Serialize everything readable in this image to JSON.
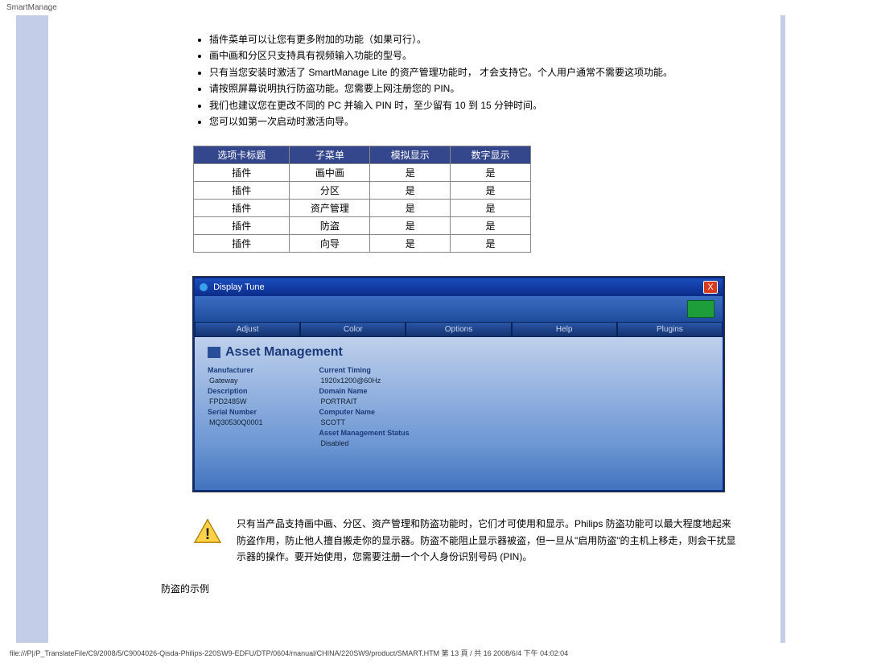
{
  "header": {
    "title": "SmartManage"
  },
  "notes": [
    "插件菜单可以让您有更多附加的功能（如果可行）。",
    "画中画和分区只支持具有视频输入功能的型号。",
    "只有当您安装时激活了 SmartManage Lite 的资产管理功能时， 才会支持它。个人用户通常不需要这项功能。",
    "请按照屏幕说明执行防盗功能。您需要上网注册您的 PIN。",
    "我们也建议您在更改不同的 PC 并输入 PIN 时，至少留有 10 到 15 分钟时间。",
    "您可以如第一次启动时激活向导。"
  ],
  "table": {
    "headers": [
      "选项卡标题",
      "子菜单",
      "模拟显示",
      "数字显示"
    ],
    "rows": [
      [
        "插件",
        "画中画",
        "是",
        "是"
      ],
      [
        "插件",
        "分区",
        "是",
        "是"
      ],
      [
        "插件",
        "资产管理",
        "是",
        "是"
      ],
      [
        "插件",
        "防盗",
        "是",
        "是"
      ],
      [
        "插件",
        "向导",
        "是",
        "是"
      ]
    ],
    "header_bg": "#35478c",
    "header_fg": "#ffffff",
    "border": "#888888"
  },
  "display_tune": {
    "window_title": "Display Tune",
    "tabs": [
      "Adjust",
      "Color",
      "Options",
      "Help",
      "Plugins"
    ],
    "panel_title": "Asset Management",
    "left": [
      {
        "label": "Manufacturer",
        "val": "Gateway"
      },
      {
        "label": "Description",
        "val": "FPD2485W"
      },
      {
        "label": "Serial Number",
        "val": "MQ30530Q0001"
      }
    ],
    "right": [
      {
        "label": "Current Timing",
        "val": "1920x1200@60Hz"
      },
      {
        "label": "Domain Name",
        "val": "PORTRAIT"
      },
      {
        "label": "Computer Name",
        "val": "SCOTT"
      },
      {
        "label": "Asset Management Status",
        "val": "Disabled"
      }
    ],
    "colors": {
      "title_bg": "#0b2d8a",
      "close_bg": "#d93a1c",
      "body_top": "#bed0ec",
      "body_bottom": "#4173be",
      "heading": "#1b3a7a"
    }
  },
  "warning": {
    "text": "只有当产品支持画中画、分区、资产管理和防盗功能时，它们才可使用和显示。Philips 防盗功能可以最大程度地起来防盗作用，防止他人擅自搬走你的显示器。防盗不能阻止显示器被盗，但一旦从\"启用防盗\"的主机上移走，则会干扰显示器的操作。要开始使用，您需要注册一个个人身份识别号码 (PIN)。"
  },
  "subheading": "防盗的示例",
  "footer": {
    "text": "file:///P|/P_TranslateFile/C9/2008/5/C9004026-Qisda-Philips-220SW9-EDFU/DTP/0604/manual/CHINA/220SW9/product/SMART.HTM 第 13 頁 / 共 16 2008/6/4 下午 04:02:04"
  }
}
